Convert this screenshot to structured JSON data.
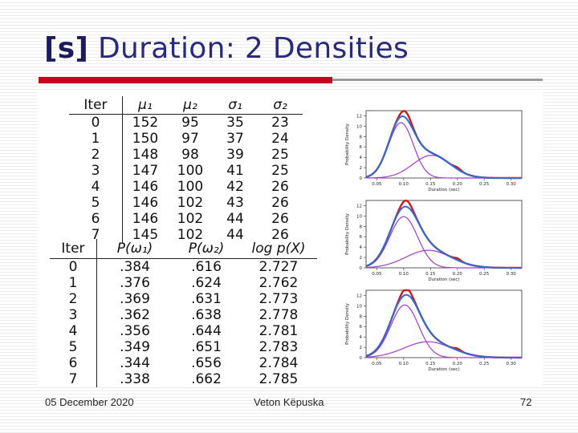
{
  "title": {
    "symbol": "[s]",
    "text": " Duration: 2 Densities"
  },
  "table1": {
    "headers": [
      "Iter",
      "μ₁",
      "μ₂",
      "σ₁",
      "σ₂"
    ],
    "rows": [
      [
        "0",
        "152",
        "95",
        "35",
        "23"
      ],
      [
        "1",
        "150",
        "97",
        "37",
        "24"
      ],
      [
        "2",
        "148",
        "98",
        "39",
        "25"
      ],
      [
        "3",
        "147",
        "100",
        "41",
        "25"
      ],
      [
        "4",
        "146",
        "100",
        "42",
        "26"
      ],
      [
        "5",
        "146",
        "102",
        "43",
        "26"
      ],
      [
        "6",
        "146",
        "102",
        "44",
        "26"
      ],
      [
        "7",
        "145",
        "102",
        "44",
        "26"
      ]
    ]
  },
  "table2": {
    "headers": [
      "Iter",
      "P(ω₁)",
      "P(ω₂)",
      "log p(X)"
    ],
    "rows": [
      [
        "0",
        ".384",
        ".616",
        "2.727"
      ],
      [
        "1",
        ".376",
        ".624",
        "2.762"
      ],
      [
        "2",
        ".369",
        ".631",
        "2.773"
      ],
      [
        "3",
        ".362",
        ".638",
        "2.778"
      ],
      [
        "4",
        ".356",
        ".644",
        "2.781"
      ],
      [
        "5",
        ".349",
        ".651",
        "2.783"
      ],
      [
        "6",
        ".344",
        ".656",
        "2.784"
      ],
      [
        "7",
        ".338",
        ".662",
        "2.785"
      ]
    ]
  },
  "plots": {
    "ylabel": "Probability Density",
    "xlabel": "Duration (sec)",
    "xticks": [
      "0.05",
      "0.10",
      "0.15",
      "0.20",
      "0.25",
      "0.30"
    ],
    "yticks": [
      "0",
      "2",
      "4",
      "6",
      "8",
      "10",
      "12"
    ],
    "xlim": [
      0.03,
      0.32
    ],
    "ylim": [
      0,
      13
    ],
    "colors": {
      "red": "#d11a1a",
      "blue": "#2a6fd6",
      "purple": "#a33acc"
    },
    "panels": [
      {
        "mu1": 0.152,
        "sigma1": 0.035,
        "p1": 0.384,
        "mu2": 0.095,
        "sigma2": 0.023,
        "p2": 0.616
      },
      {
        "mu1": 0.146,
        "sigma1": 0.042,
        "p1": 0.356,
        "mu2": 0.1,
        "sigma2": 0.026,
        "p2": 0.644
      },
      {
        "mu1": 0.145,
        "sigma1": 0.044,
        "p1": 0.338,
        "mu2": 0.102,
        "sigma2": 0.026,
        "p2": 0.662
      }
    ]
  },
  "footer": {
    "date": "05 December 2020",
    "author": "Veton Këpuska",
    "page": "72"
  }
}
